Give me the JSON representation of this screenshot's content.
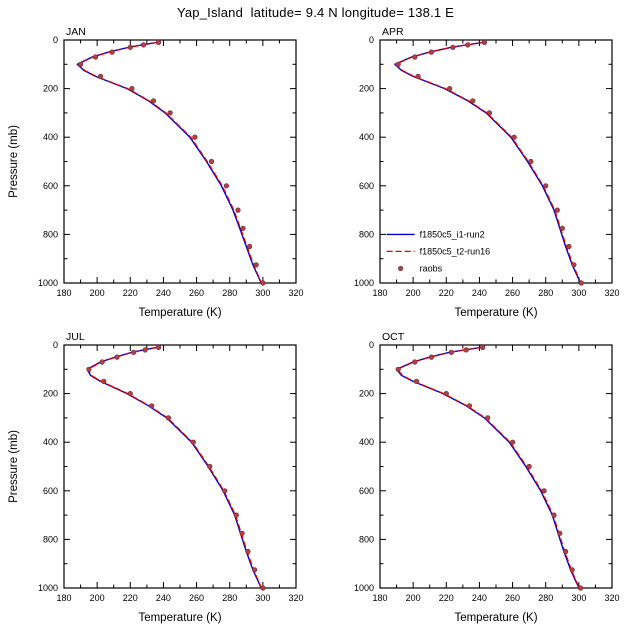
{
  "title": "Yap_Island  latitude= 9.4 N longitude= 138.1 E",
  "colors": {
    "run2_line": "#0000cd",
    "run16_line": "#e00000",
    "raobs_dot": "#b04048",
    "frame": "#000000"
  },
  "legend": {
    "panel_index": 1,
    "position": "lower-left",
    "entries": [
      "f1850c5_i1-run2",
      "f1850c5_t2-run16",
      "raobs"
    ]
  },
  "chart_data": [
    {
      "type": "line",
      "title": "JAN",
      "xlabel": "Temperature (K)",
      "ylabel": "Pressure (mb)",
      "xlim": [
        180,
        320
      ],
      "ylim": [
        0,
        1000
      ],
      "y_inverted": true,
      "grid": false,
      "xticks": [
        180,
        200,
        220,
        240,
        260,
        280,
        300,
        320
      ],
      "yticks": [
        0,
        200,
        400,
        600,
        800,
        1000
      ],
      "x_minor_step": 10,
      "y_minor_step": 100,
      "series": [
        {
          "name": "f1850c5_i1-run2",
          "type": "line",
          "style": "solid",
          "color": "#0000cd",
          "levels": [
            10,
            20,
            30,
            50,
            70,
            100,
            125,
            150,
            200,
            250,
            300,
            400,
            500,
            600,
            700,
            775,
            850,
            925,
            1000
          ],
          "values": [
            236,
            227,
            219,
            207,
            197,
            188,
            192,
            199,
            218,
            231,
            241,
            256,
            266,
            275,
            282,
            286,
            290,
            294,
            299
          ]
        },
        {
          "name": "f1850c5_t2-run16",
          "type": "line",
          "style": "dashed",
          "color": "#e00000",
          "levels": [
            10,
            20,
            30,
            50,
            70,
            100,
            125,
            150,
            200,
            250,
            300,
            400,
            500,
            600,
            700,
            775,
            850,
            925,
            1000
          ],
          "values": [
            236.5,
            227.5,
            219.5,
            207.5,
            197.5,
            188.5,
            192.5,
            199.5,
            218.5,
            231.5,
            241.5,
            256.5,
            266.5,
            275.5,
            282.5,
            286.5,
            290.5,
            294.5,
            299.2
          ]
        },
        {
          "name": "raobs",
          "type": "scatter",
          "style": "dot",
          "color": "#b04048",
          "levels": [
            10,
            20,
            30,
            50,
            70,
            100,
            150,
            200,
            250,
            300,
            400,
            500,
            600,
            700,
            775,
            850,
            925,
            1000
          ],
          "values": [
            237,
            228,
            220,
            209,
            199,
            190,
            202,
            221,
            234,
            244,
            259,
            269,
            278,
            285,
            288,
            292,
            296,
            300
          ]
        }
      ]
    },
    {
      "type": "line",
      "title": "APR",
      "xlabel": "Temperature (K)",
      "ylabel": "",
      "xlim": [
        180,
        320
      ],
      "ylim": [
        0,
        1000
      ],
      "y_inverted": true,
      "grid": false,
      "xticks": [
        180,
        200,
        220,
        240,
        260,
        280,
        300,
        320
      ],
      "yticks": [
        0,
        200,
        400,
        600,
        800,
        1000
      ],
      "x_minor_step": 10,
      "y_minor_step": 100,
      "series": [
        {
          "name": "f1850c5_i1-run2",
          "type": "line",
          "style": "solid",
          "color": "#0000cd",
          "levels": [
            10,
            20,
            30,
            50,
            70,
            100,
            125,
            150,
            200,
            250,
            300,
            400,
            500,
            600,
            700,
            775,
            850,
            925,
            1000
          ],
          "values": [
            242,
            232,
            223,
            210,
            199,
            189,
            193,
            200,
            219,
            233,
            244,
            259,
            269,
            278,
            285,
            288.5,
            292,
            296,
            301
          ]
        },
        {
          "name": "f1850c5_t2-run16",
          "type": "line",
          "style": "dashed",
          "color": "#e00000",
          "levels": [
            10,
            20,
            30,
            50,
            70,
            100,
            125,
            150,
            200,
            250,
            300,
            400,
            500,
            600,
            700,
            775,
            850,
            925,
            1000
          ],
          "values": [
            242.5,
            232.5,
            223.5,
            210.5,
            199.5,
            189.5,
            193.5,
            200.5,
            219.5,
            233.5,
            244.5,
            259.5,
            269.5,
            278.5,
            285.5,
            289,
            292.5,
            296.5,
            301.2
          ]
        },
        {
          "name": "raobs",
          "type": "scatter",
          "style": "dot",
          "color": "#b04048",
          "levels": [
            10,
            20,
            30,
            50,
            70,
            100,
            150,
            200,
            250,
            300,
            400,
            500,
            600,
            700,
            775,
            850,
            925,
            1000
          ],
          "values": [
            243,
            233,
            224,
            211,
            201,
            191,
            203,
            222,
            236,
            246,
            261,
            271,
            280,
            287,
            290,
            294,
            297,
            301.5
          ]
        }
      ]
    },
    {
      "type": "line",
      "title": "JUL",
      "xlabel": "Temperature (K)",
      "ylabel": "Pressure (mb)",
      "xlim": [
        180,
        320
      ],
      "ylim": [
        0,
        1000
      ],
      "y_inverted": true,
      "grid": false,
      "xticks": [
        180,
        200,
        220,
        240,
        260,
        280,
        300,
        320
      ],
      "yticks": [
        0,
        200,
        400,
        600,
        800,
        1000
      ],
      "x_minor_step": 10,
      "y_minor_step": 100,
      "series": [
        {
          "name": "f1850c5_i1-run2",
          "type": "line",
          "style": "solid",
          "color": "#0000cd",
          "levels": [
            10,
            20,
            30,
            50,
            70,
            100,
            125,
            150,
            200,
            250,
            300,
            400,
            500,
            600,
            700,
            775,
            850,
            925,
            1000
          ],
          "values": [
            236,
            228,
            221,
            211,
            202,
            194,
            196,
            202,
            218,
            231,
            242,
            257,
            267,
            276,
            283,
            286.5,
            290,
            294,
            299
          ]
        },
        {
          "name": "f1850c5_t2-run16",
          "type": "line",
          "style": "dashed",
          "color": "#e00000",
          "levels": [
            10,
            20,
            30,
            50,
            70,
            100,
            125,
            150,
            200,
            250,
            300,
            400,
            500,
            600,
            700,
            775,
            850,
            925,
            1000
          ],
          "values": [
            236.5,
            228.5,
            221.5,
            211.5,
            202.5,
            194.5,
            196.5,
            202.5,
            218.5,
            231.5,
            242.5,
            257.5,
            267.5,
            276.5,
            283.5,
            287,
            290.5,
            294.5,
            299.2
          ]
        },
        {
          "name": "raobs",
          "type": "scatter",
          "style": "dot",
          "color": "#b04048",
          "levels": [
            10,
            20,
            30,
            50,
            70,
            100,
            150,
            200,
            250,
            300,
            400,
            500,
            600,
            700,
            775,
            850,
            925,
            1000
          ],
          "values": [
            237,
            229,
            222,
            212,
            203,
            195,
            204,
            220,
            233,
            243,
            258,
            268,
            277,
            284,
            287.5,
            291,
            295,
            300
          ]
        }
      ]
    },
    {
      "type": "line",
      "title": "OCT",
      "xlabel": "Temperature (K)",
      "ylabel": "",
      "xlim": [
        180,
        320
      ],
      "ylim": [
        0,
        1000
      ],
      "y_inverted": true,
      "grid": false,
      "xticks": [
        180,
        200,
        220,
        240,
        260,
        280,
        300,
        320
      ],
      "yticks": [
        0,
        200,
        400,
        600,
        800,
        1000
      ],
      "x_minor_step": 10,
      "y_minor_step": 100,
      "series": [
        {
          "name": "f1850c5_i1-run2",
          "type": "line",
          "style": "solid",
          "color": "#0000cd",
          "levels": [
            10,
            20,
            30,
            50,
            70,
            100,
            125,
            150,
            200,
            250,
            300,
            400,
            500,
            600,
            700,
            775,
            850,
            925,
            1000
          ],
          "values": [
            241,
            231,
            222,
            210,
            200,
            190,
            193,
            200,
            218,
            232,
            243,
            258,
            268,
            277,
            284,
            287.5,
            291,
            295,
            300
          ]
        },
        {
          "name": "f1850c5_t2-run16",
          "type": "line",
          "style": "dashed",
          "color": "#e00000",
          "levels": [
            10,
            20,
            30,
            50,
            70,
            100,
            125,
            150,
            200,
            250,
            300,
            400,
            500,
            600,
            700,
            775,
            850,
            925,
            1000
          ],
          "values": [
            241.5,
            231.5,
            222.5,
            210.5,
            200.5,
            190.5,
            193.5,
            200.5,
            218.5,
            232.5,
            243.5,
            258.5,
            268.5,
            277.5,
            284.5,
            288,
            291.5,
            295.5,
            300.2
          ]
        },
        {
          "name": "raobs",
          "type": "scatter",
          "style": "dot",
          "color": "#b04048",
          "levels": [
            10,
            20,
            30,
            50,
            70,
            100,
            150,
            200,
            250,
            300,
            400,
            500,
            600,
            700,
            775,
            850,
            925,
            1000
          ],
          "values": [
            242,
            232,
            223,
            211,
            201,
            191,
            202,
            220,
            234,
            245,
            260,
            270,
            279,
            285,
            288.5,
            292,
            296,
            301
          ]
        }
      ]
    }
  ]
}
